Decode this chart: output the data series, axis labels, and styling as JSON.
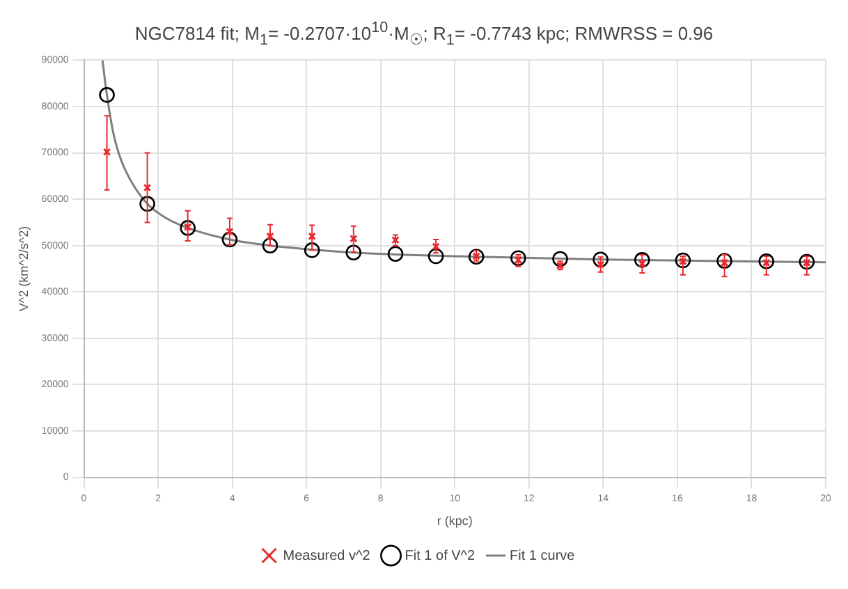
{
  "chart_data": {
    "type": "scatter",
    "title": "NGC7814 fit; M$_{1}$= -0.2707·10$^{10}$·M$_{☉}$; R$_{1}$= -0.7743 kpc; RMWRSS = 0.96",
    "xlabel": "r (kpc)",
    "ylabel": "V^2 (km^2/s^2)",
    "xlim": [
      0,
      20
    ],
    "xticks": [
      0,
      2,
      4,
      6,
      8,
      10,
      12,
      14,
      16,
      18,
      20
    ],
    "ylim": [
      0,
      90000
    ],
    "yticks": [
      0,
      10000,
      20000,
      30000,
      40000,
      50000,
      60000,
      70000,
      80000,
      90000
    ],
    "grid": true,
    "legend": "bottom",
    "series": [
      {
        "name": "Measured v^2",
        "type": "scatter",
        "marker": "cross",
        "color": "#e8282e",
        "x": [
          0.62,
          1.71,
          2.8,
          3.93,
          5.02,
          6.15,
          7.27,
          8.4,
          9.49,
          10.58,
          11.71,
          12.84,
          13.93,
          15.05,
          16.15,
          17.27,
          18.4,
          19.49
        ],
        "values": [
          70200,
          62500,
          54000,
          53000,
          52000,
          52000,
          51500,
          51200,
          49800,
          47700,
          46900,
          45700,
          45900,
          46100,
          46600,
          46300,
          46300,
          46300
        ],
        "errors": [
          [
            62000,
            78000
          ],
          [
            55000,
            70000
          ],
          [
            51000,
            57500
          ],
          [
            50200,
            55900
          ],
          [
            50000,
            54500
          ],
          [
            49000,
            54400
          ],
          [
            48600,
            54200
          ],
          [
            50000,
            52300
          ],
          [
            48400,
            51300
          ],
          [
            46700,
            48900
          ],
          [
            45500,
            48000
          ],
          [
            44800,
            46600
          ],
          [
            44300,
            47500
          ],
          [
            44100,
            48000
          ],
          [
            43700,
            47700
          ],
          [
            43300,
            48000
          ],
          [
            43700,
            47700
          ],
          [
            43700,
            47700
          ]
        ]
      },
      {
        "name": "Fit 1 of V^2",
        "type": "scatter",
        "marker": "circle",
        "color": "#000000",
        "x": [
          0.62,
          1.71,
          2.8,
          3.93,
          5.02,
          6.15,
          7.27,
          8.4,
          9.49,
          10.58,
          11.71,
          12.84,
          13.93,
          15.05,
          16.15,
          17.27,
          18.4,
          19.49
        ],
        "values": [
          82500,
          59000,
          53800,
          51300,
          50000,
          49000,
          48500,
          48200,
          47700,
          47600,
          47300,
          47100,
          47000,
          46900,
          46800,
          46700,
          46600,
          46500
        ]
      },
      {
        "name": "Fit 1 curve",
        "type": "line",
        "marker": "none",
        "color": "#7f7f7f",
        "x": [
          0.5,
          0.62,
          0.8,
          1.0,
          1.3,
          1.71,
          2.2,
          2.8,
          3.93,
          5.02,
          7.27,
          10,
          14,
          20
        ],
        "values": [
          90000,
          82500,
          74000,
          68500,
          63500,
          59000,
          56000,
          53800,
          51300,
          50000,
          48500,
          47700,
          47000,
          46400
        ]
      }
    ]
  }
}
